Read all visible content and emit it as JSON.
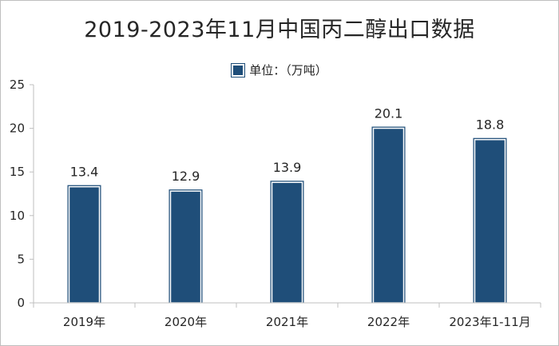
{
  "chart_data": {
    "type": "bar",
    "title": "2019-2023年11月中国丙二醇出口数据",
    "legend": {
      "label": "单位：（万吨）",
      "placement": "top-center"
    },
    "categories": [
      "2019年",
      "2020年",
      "2021年",
      "2022年",
      "2023年1-11月"
    ],
    "series": [
      {
        "name": "单位：（万吨）",
        "values": [
          13.4,
          12.9,
          13.9,
          20.1,
          18.8
        ]
      }
    ],
    "data_labels": [
      "13.4",
      "12.9",
      "13.9",
      "20.1",
      "18.8"
    ],
    "ylim": [
      0,
      25
    ],
    "yticks": [
      0,
      5,
      10,
      15,
      20,
      25
    ],
    "grid": false,
    "colors": {
      "bar_fill": "#1f4e79",
      "bar_border": "#ffffff",
      "axis": "#bfbfbf",
      "text": "#262626"
    }
  }
}
